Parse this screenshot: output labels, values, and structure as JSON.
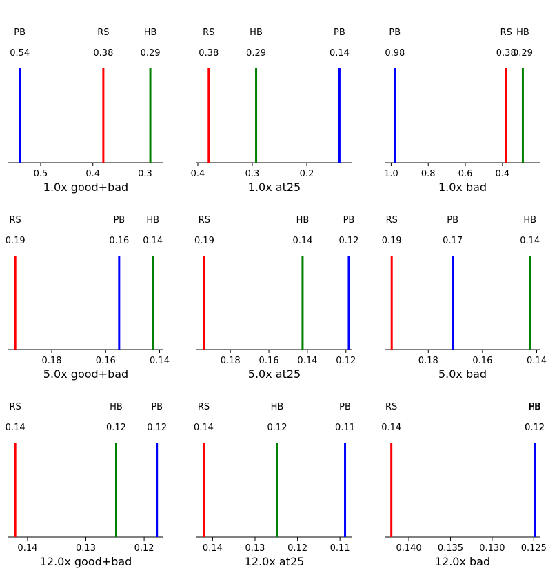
{
  "chart_data": [
    {
      "type": "line",
      "xlabel": "1.0x good+bad",
      "xlim": [
        0.562,
        0.265
      ],
      "ticks": [
        0.5,
        0.4,
        0.3
      ],
      "tick_labels": [
        "0.5",
        "0.4",
        "0.3"
      ],
      "series": [
        {
          "name": "PB",
          "value": 0.54,
          "label": "0.54",
          "color": "#0000ff"
        },
        {
          "name": "RS",
          "value": 0.38,
          "label": "0.38",
          "color": "#ff0000"
        },
        {
          "name": "HB",
          "value": 0.29,
          "label": "0.29",
          "color": "#008000"
        }
      ]
    },
    {
      "type": "line",
      "xlabel": "1.0x at25",
      "xlim": [
        0.4025,
        0.1165
      ],
      "ticks": [
        0.4,
        0.3,
        0.2
      ],
      "tick_labels": [
        "0.4",
        "0.3",
        "0.2"
      ],
      "series": [
        {
          "name": "RS",
          "value": 0.38,
          "label": "0.38",
          "color": "#ff0000"
        },
        {
          "name": "HB",
          "value": 0.293,
          "label": "0.29",
          "color": "#008000"
        },
        {
          "name": "PB",
          "value": 0.14,
          "label": "0.14",
          "color": "#0000ff"
        }
      ]
    },
    {
      "type": "line",
      "xlabel": "1.0x bad",
      "xlim": [
        1.035,
        0.195
      ],
      "ticks": [
        1.0,
        0.8,
        0.6,
        0.4
      ],
      "tick_labels": [
        "1.0",
        "0.8",
        "0.6",
        "0.4"
      ],
      "series": [
        {
          "name": "PB",
          "value": 0.98,
          "label": "0.98",
          "color": "#0000ff"
        },
        {
          "name": "RS",
          "value": 0.38,
          "label": "0.38",
          "color": "#ff0000"
        },
        {
          "name": "HB",
          "value": 0.29,
          "label": "0.29",
          "color": "#008000"
        }
      ]
    },
    {
      "type": "line",
      "xlabel": "5.0x good+bad",
      "xlim": [
        0.1961,
        0.1386
      ],
      "ticks": [
        0.18,
        0.16,
        0.14
      ],
      "tick_labels": [
        "0.18",
        "0.16",
        "0.14"
      ],
      "series": [
        {
          "name": "RS",
          "value": 0.1935,
          "label": "0.19",
          "color": "#ff0000"
        },
        {
          "name": "PB",
          "value": 0.155,
          "label": "0.16",
          "color": "#0000ff"
        },
        {
          "name": "HB",
          "value": 0.1425,
          "label": "0.14",
          "color": "#008000"
        }
      ]
    },
    {
      "type": "line",
      "xlabel": "5.0x at25",
      "xlim": [
        0.1976,
        0.1167
      ],
      "ticks": [
        0.18,
        0.16,
        0.14,
        0.12
      ],
      "tick_labels": [
        "0.18",
        "0.16",
        "0.14",
        "0.12"
      ],
      "series": [
        {
          "name": "RS",
          "value": 0.1935,
          "label": "0.19",
          "color": "#ff0000"
        },
        {
          "name": "HB",
          "value": 0.1425,
          "label": "0.14",
          "color": "#008000"
        },
        {
          "name": "PB",
          "value": 0.1185,
          "label": "0.12",
          "color": "#0000ff"
        }
      ]
    },
    {
      "type": "line",
      "xlabel": "5.0x bad",
      "xlim": [
        0.1961,
        0.1386
      ],
      "ticks": [
        0.18,
        0.16,
        0.14
      ],
      "tick_labels": [
        "0.18",
        "0.16",
        "0.14"
      ],
      "series": [
        {
          "name": "RS",
          "value": 0.1935,
          "label": "0.19",
          "color": "#ff0000"
        },
        {
          "name": "PB",
          "value": 0.171,
          "label": "0.17",
          "color": "#0000ff"
        },
        {
          "name": "HB",
          "value": 0.1425,
          "label": "0.14",
          "color": "#008000"
        }
      ]
    },
    {
      "type": "line",
      "xlabel": "12.0x good+bad",
      "xlim": [
        0.1433,
        0.1167
      ],
      "ticks": [
        0.14,
        0.13,
        0.12
      ],
      "tick_labels": [
        "0.14",
        "0.13",
        "0.12"
      ],
      "series": [
        {
          "name": "RS",
          "value": 0.1421,
          "label": "0.14",
          "color": "#ff0000"
        },
        {
          "name": "HB",
          "value": 0.1248,
          "label": "0.12",
          "color": "#008000"
        },
        {
          "name": "PB",
          "value": 0.1178,
          "label": "0.12",
          "color": "#0000ff"
        }
      ]
    },
    {
      "type": "line",
      "xlabel": "12.0x at25",
      "xlim": [
        0.1438,
        0.1071
      ],
      "ticks": [
        0.14,
        0.13,
        0.12,
        0.11
      ],
      "tick_labels": [
        "0.14",
        "0.13",
        "0.12",
        "0.11"
      ],
      "series": [
        {
          "name": "RS",
          "value": 0.1421,
          "label": "0.14",
          "color": "#ff0000"
        },
        {
          "name": "HB",
          "value": 0.1248,
          "label": "0.12",
          "color": "#008000"
        },
        {
          "name": "PB",
          "value": 0.1088,
          "label": "0.11",
          "color": "#0000ff"
        }
      ]
    },
    {
      "type": "line",
      "xlabel": "12.0x bad",
      "xlim": [
        0.1429,
        0.1242
      ],
      "ticks": [
        0.14,
        0.135,
        0.13,
        0.125
      ],
      "tick_labels": [
        "0.140",
        "0.135",
        "0.130",
        "0.125"
      ],
      "series": [
        {
          "name": "RS",
          "value": 0.1421,
          "label": "0.14",
          "color": "#ff0000"
        },
        {
          "name": "HB",
          "value": 0.1249,
          "label": "0.12",
          "color": "#008000"
        },
        {
          "name": "PB",
          "value": 0.1249,
          "label": "0.12",
          "color": "#0000ff"
        }
      ]
    }
  ]
}
